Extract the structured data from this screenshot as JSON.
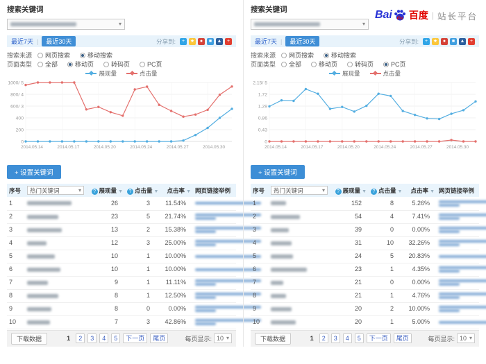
{
  "ui": {
    "caret": "▾",
    "range_divider": "|",
    "help_glyph": "?",
    "sort_glyph": "▼"
  },
  "brand": {
    "bai": "Bai",
    "du": "du",
    "cn": "百度",
    "divider": "|",
    "suffix": "站长平台"
  },
  "share_icons": [
    {
      "name": "add-share-icon",
      "color": "#30a5e7",
      "glyph": "+"
    },
    {
      "name": "qzone-share-icon",
      "color": "#fbc63a",
      "glyph": "★"
    },
    {
      "name": "weibo-share-icon",
      "color": "#d54238",
      "glyph": "●"
    },
    {
      "name": "tqq-share-icon",
      "color": "#3f9fe0",
      "glyph": "■"
    },
    {
      "name": "renren-share-icon",
      "color": "#2b5f9e",
      "glyph": "▲"
    },
    {
      "name": "more-share-icon",
      "color": "#e23e31",
      "glyph": "+"
    }
  ],
  "panels": [
    {
      "title": "搜索关键词",
      "range": {
        "recent7": "最近7天",
        "recent30": "最近30天",
        "active": "最近30天"
      },
      "share": {
        "label": "分享到:"
      },
      "filters": [
        {
          "label": "搜索来源",
          "options": [
            {
              "label": "网页搜索",
              "selected": false
            },
            {
              "label": "移动搜索",
              "selected": true
            }
          ]
        },
        {
          "label": "页面类型",
          "options": [
            {
              "label": "全部",
              "selected": false
            },
            {
              "label": "移动页",
              "selected": true
            },
            {
              "label": "转码页",
              "selected": false
            },
            {
              "label": "PC页",
              "selected": false
            }
          ]
        }
      ],
      "chart_data": {
        "type": "line",
        "x_labels": [
          "2014.05.14",
          "2014.05.17",
          "2014.05.20",
          "2014.05.24",
          "2014.05.27",
          "2014.05.30"
        ],
        "y_ticks": [
          "1000/ 5",
          "800/ 4",
          "600/ 3",
          "400",
          "200",
          "0"
        ],
        "y_max": 1000,
        "grid": true,
        "legend_position": "top",
        "series": [
          {
            "name": "展现量",
            "color": "#54aee1",
            "values": [
              0,
              0,
              0,
              0,
              0,
              0,
              0,
              0,
              0,
              0,
              0,
              0,
              0,
              15,
              110,
              230,
              400,
              553
            ]
          },
          {
            "name": "点击量",
            "color": "#e4706d",
            "values": [
              958,
              1000,
              1000,
              1000,
              1000,
              543,
              586,
              496,
              436,
              882,
              929,
              621,
              518,
              421,
              457,
              536,
              793,
              932
            ]
          }
        ]
      },
      "actions": {
        "set_keywords": "+ 设置关键词"
      },
      "table": {
        "headers": {
          "index": "序号",
          "keyword": "热门关键词",
          "impressions": "展现量",
          "clicks": "点击量",
          "ctr": "点击率",
          "links": "网页链接举例"
        },
        "rows": [
          {
            "index": 1,
            "impressions": 26,
            "clicks": 3,
            "ctr": "11.54%",
            "kw_w": 64,
            "l2": false
          },
          {
            "index": 2,
            "impressions": 23,
            "clicks": 5,
            "ctr": "21.74%",
            "kw_w": 45,
            "l2": true
          },
          {
            "index": 3,
            "impressions": 13,
            "clicks": 2,
            "ctr": "15.38%",
            "kw_w": 50,
            "l2": true
          },
          {
            "index": 4,
            "impressions": 12,
            "clicks": 3,
            "ctr": "25.00%",
            "kw_w": 28,
            "l2": true
          },
          {
            "index": 5,
            "impressions": 10,
            "clicks": 1,
            "ctr": "10.00%",
            "kw_w": 40,
            "l2": false
          },
          {
            "index": 6,
            "impressions": 10,
            "clicks": 1,
            "ctr": "10.00%",
            "kw_w": 48,
            "l2": false
          },
          {
            "index": 7,
            "impressions": 9,
            "clicks": 1,
            "ctr": "11.11%",
            "kw_w": 30,
            "l2": true
          },
          {
            "index": 8,
            "impressions": 8,
            "clicks": 1,
            "ctr": "12.50%",
            "kw_w": 45,
            "l2": true
          },
          {
            "index": 9,
            "impressions": 8,
            "clicks": 0,
            "ctr": "0.00%",
            "kw_w": 35,
            "l2": true
          },
          {
            "index": 10,
            "impressions": 7,
            "clicks": 3,
            "ctr": "42.86%",
            "kw_w": 33,
            "l2": true
          }
        ]
      },
      "pagination": {
        "download": "下载数据",
        "pages": [
          "1",
          "2",
          "3",
          "4",
          "5"
        ],
        "current": "1",
        "next": "下一页",
        "last": "尾页",
        "per_page_label": "每页显示:",
        "per_page": "10"
      }
    },
    {
      "title": "搜索关键词",
      "range": {
        "recent7": "最近7天",
        "recent30": "最近30天",
        "active": "最近30天"
      },
      "share": {
        "label": "分享到:"
      },
      "filters": [
        {
          "label": "搜索来源",
          "options": [
            {
              "label": "网页搜索",
              "selected": false
            },
            {
              "label": "移动搜索",
              "selected": true
            }
          ]
        },
        {
          "label": "页面类型",
          "options": [
            {
              "label": "全部",
              "selected": false
            },
            {
              "label": "移动页",
              "selected": false
            },
            {
              "label": "转码页",
              "selected": false
            },
            {
              "label": "PC页",
              "selected": true
            }
          ]
        }
      ],
      "chart_data": {
        "type": "line",
        "x_labels": [
          "2014.05.14",
          "2014.05.17",
          "2014.05.20",
          "2014.05.24",
          "2014.05.27",
          "2014.05.30"
        ],
        "y_ticks": [
          "2.15/ 5",
          "1.72",
          "1.29",
          "0.86",
          "0.43",
          "0"
        ],
        "y_max": 2.15,
        "grid": true,
        "legend_position": "top",
        "series": [
          {
            "name": "展现量",
            "color": "#54aee1",
            "values": [
              1.28,
              1.5,
              1.48,
              1.91,
              1.74,
              1.19,
              1.26,
              1.09,
              1.3,
              1.74,
              1.66,
              1.11,
              0.97,
              0.84,
              0.82,
              1.01,
              1.14,
              1.46
            ]
          },
          {
            "name": "点击量",
            "color": "#e4706d",
            "values": [
              0,
              0,
              0,
              0,
              0,
              0,
              0,
              0,
              0,
              0,
              0,
              0,
              0,
              0,
              0,
              0.05,
              0,
              0
            ]
          }
        ]
      },
      "actions": {
        "set_keywords": "+ 设置关键词"
      },
      "table": {
        "headers": {
          "index": "序号",
          "keyword": "热门关键词",
          "impressions": "展现量",
          "clicks": "点击量",
          "ctr": "点击率",
          "links": "网页链接举例"
        },
        "rows": [
          {
            "index": 1,
            "impressions": 152,
            "clicks": 8,
            "ctr": "5.26%",
            "kw_w": 22,
            "l2": true
          },
          {
            "index": 2,
            "impressions": 54,
            "clicks": 4,
            "ctr": "7.41%",
            "kw_w": 42,
            "l2": true
          },
          {
            "index": 3,
            "impressions": 39,
            "clicks": 0,
            "ctr": "0.00%",
            "kw_w": 26,
            "l2": true
          },
          {
            "index": 4,
            "impressions": 31,
            "clicks": 10,
            "ctr": "32.26%",
            "kw_w": 30,
            "l2": true
          },
          {
            "index": 5,
            "impressions": 24,
            "clicks": 5,
            "ctr": "20.83%",
            "kw_w": 32,
            "l2": false
          },
          {
            "index": 6,
            "impressions": 23,
            "clicks": 1,
            "ctr": "4.35%",
            "kw_w": 52,
            "l2": true
          },
          {
            "index": 7,
            "impressions": 21,
            "clicks": 0,
            "ctr": "0.00%",
            "kw_w": 18,
            "l2": true
          },
          {
            "index": 8,
            "impressions": 21,
            "clicks": 1,
            "ctr": "4.76%",
            "kw_w": 22,
            "l2": true
          },
          {
            "index": 9,
            "impressions": 20,
            "clicks": 2,
            "ctr": "10.00%",
            "kw_w": 30,
            "l2": true
          },
          {
            "index": 10,
            "impressions": 20,
            "clicks": 1,
            "ctr": "5.00%",
            "kw_w": 36,
            "l2": false
          }
        ]
      },
      "pagination": {
        "download": "下载数据",
        "pages": [
          "1",
          "2",
          "3",
          "4",
          "5"
        ],
        "current": "1",
        "next": "下一页",
        "last": "尾页",
        "per_page_label": "每页显示:",
        "per_page": "10"
      }
    }
  ]
}
